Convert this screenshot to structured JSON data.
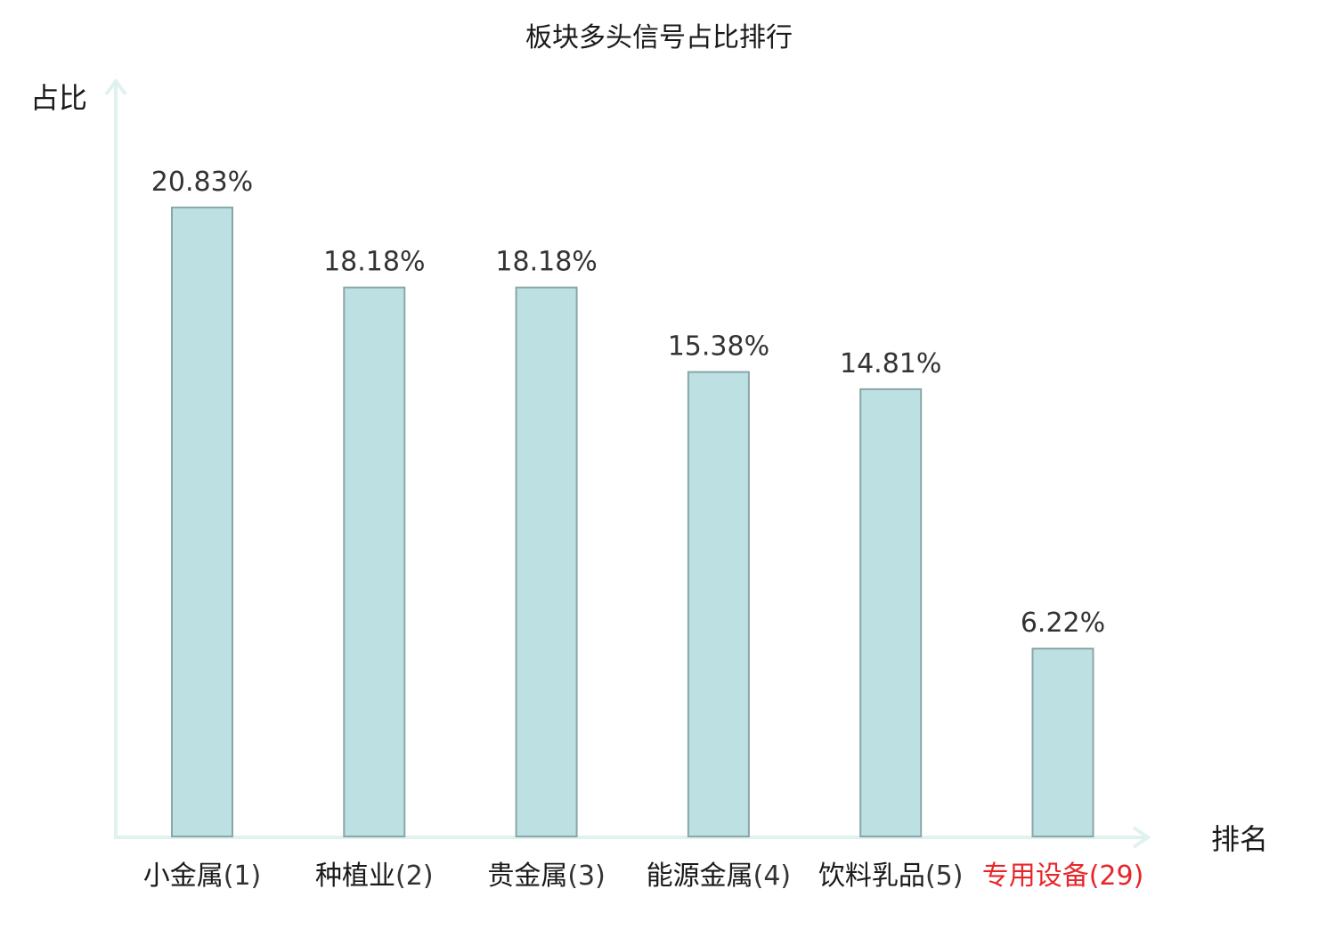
{
  "chart_data": {
    "type": "bar",
    "title": "板块多头信号占比排行",
    "ylabel": "占比",
    "xlabel": "排名",
    "categories": [
      "小金属",
      "种植业",
      "贵金属",
      "能源金属",
      "饮料乳品",
      "专用设备"
    ],
    "ranks": [
      "(1)",
      "(2)",
      "(3)",
      "(4)",
      "(5)",
      "(29)"
    ],
    "values": [
      20.83,
      18.18,
      18.18,
      15.38,
      14.81,
      6.22
    ],
    "value_labels": [
      "20.83%",
      "18.18%",
      "18.18%",
      "15.38%",
      "14.81%",
      "6.22%"
    ],
    "highlight": [
      false,
      false,
      false,
      false,
      false,
      true
    ],
    "ylim": [
      0,
      24
    ],
    "grid": false,
    "legend": "none",
    "colors": {
      "bar_fill": "#bde0e2",
      "bar_stroke": "#8aa6a8",
      "axis": "#e0f2f0",
      "text": "#333333",
      "label": "#1a1a1a",
      "highlight": "#e8262a"
    }
  }
}
